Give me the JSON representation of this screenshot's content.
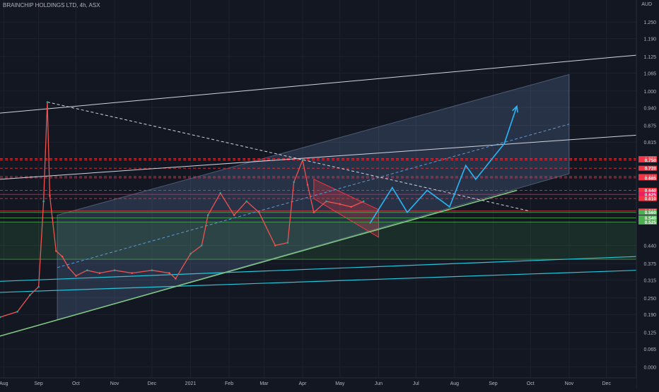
{
  "header": {
    "title": "BRAINCHIP HOLDINGS LTD, 4h, ASX",
    "currency": "AUD"
  },
  "chart_data": {
    "type": "line",
    "title": "BRAINCHIP HOLDINGS LTD, 4h, ASX",
    "xlabel": "",
    "ylabel": "AUD",
    "ylim": [
      -0.04,
      1.33
    ],
    "xlim": [
      "2020-08-01",
      "2021-12-25"
    ],
    "x_ticks": [
      {
        "date": "2020-08-04",
        "label": "Aug"
      },
      {
        "date": "2020-09-01",
        "label": "Sep"
      },
      {
        "date": "2020-10-01",
        "label": "Oct"
      },
      {
        "date": "2020-11-01",
        "label": "Nov"
      },
      {
        "date": "2020-12-01",
        "label": "Dec"
      },
      {
        "date": "2021-01-01",
        "label": "2021"
      },
      {
        "date": "2021-02-01",
        "label": "Feb"
      },
      {
        "date": "2021-03-01",
        "label": "Mar"
      },
      {
        "date": "2021-04-01",
        "label": "Apr"
      },
      {
        "date": "2021-05-01",
        "label": "May"
      },
      {
        "date": "2021-06-01",
        "label": "Jun"
      },
      {
        "date": "2021-07-01",
        "label": "Jul"
      },
      {
        "date": "2021-08-01",
        "label": "Aug"
      },
      {
        "date": "2021-09-01",
        "label": "Sep"
      },
      {
        "date": "2021-10-01",
        "label": "Oct"
      },
      {
        "date": "2021-11-01",
        "label": "Nov"
      },
      {
        "date": "2021-12-01",
        "label": "Dec"
      }
    ],
    "y_ticks": [
      "1.250",
      "1.190",
      "1.125",
      "1.065",
      "1.000",
      "0.940",
      "0.875",
      "0.815",
      "0.440",
      "0.375",
      "0.315",
      "0.250",
      "0.190",
      "0.125",
      "0.065",
      "0.000"
    ],
    "price_badges": [
      {
        "value": 0.755,
        "label": "0.755",
        "color": "#f23645"
      },
      {
        "value": 0.75,
        "label": "0.750",
        "color": "#f23645"
      },
      {
        "value": 0.72,
        "label": "0.720",
        "color": "#f23645"
      },
      {
        "value": 0.69,
        "label": "0.690",
        "color": "#f23645"
      },
      {
        "value": 0.685,
        "label": "0.685",
        "color": "#f23645"
      },
      {
        "value": 0.64,
        "label": "0.640",
        "color": "#f23645"
      },
      {
        "value": 0.625,
        "label": "0.625",
        "color": "#e91e63"
      },
      {
        "value": 0.61,
        "label": "0.610",
        "color": "#f23645"
      },
      {
        "value": 0.565,
        "label": "0.565",
        "color": "#f23645"
      },
      {
        "value": 0.56,
        "label": "0.560",
        "color": "#4caf50"
      },
      {
        "value": 0.54,
        "label": "0.540",
        "color": "#4caf50"
      },
      {
        "value": 0.525,
        "label": "0.525",
        "color": "#4caf50"
      }
    ],
    "price_series": {
      "name": "",
      "x": [
        "2020-08-01",
        "2020-08-15",
        "2020-08-25",
        "2020-09-01",
        "2020-09-05",
        "2020-09-08",
        "2020-09-10",
        "2020-09-12",
        "2020-09-15",
        "2020-09-20",
        "2020-09-25",
        "2020-10-01",
        "2020-10-10",
        "2020-10-20",
        "2020-11-01",
        "2020-11-15",
        "2020-12-01",
        "2020-12-15",
        "2020-12-20",
        "2021-01-01",
        "2021-01-10",
        "2021-01-15",
        "2021-01-25",
        "2021-02-05",
        "2021-02-15",
        "2021-02-25",
        "2021-03-10",
        "2021-03-20",
        "2021-03-25",
        "2021-04-01",
        "2021-04-05",
        "2021-04-10",
        "2021-04-20",
        "2021-05-01",
        "2021-05-10",
        "2021-05-20"
      ],
      "y": [
        0.18,
        0.2,
        0.26,
        0.29,
        0.6,
        0.96,
        0.62,
        0.54,
        0.42,
        0.4,
        0.36,
        0.33,
        0.35,
        0.34,
        0.35,
        0.34,
        0.35,
        0.34,
        0.32,
        0.41,
        0.44,
        0.55,
        0.63,
        0.55,
        0.6,
        0.56,
        0.44,
        0.45,
        0.67,
        0.75,
        0.66,
        0.56,
        0.6,
        0.59,
        0.58,
        0.6
      ]
    },
    "annotations": {
      "channel": {
        "lower": [
          [
            "2020-09-16",
            0.17
          ],
          [
            "2021-11-01",
            0.7
          ]
        ],
        "upper": [
          [
            "2020-09-16",
            0.55
          ],
          [
            "2021-11-01",
            1.06
          ]
        ]
      },
      "support_line": [
        [
          "2020-07-15",
          0.09
        ],
        [
          "2021-09-20",
          0.64
        ]
      ],
      "upper_white_1": [
        [
          "2020-08-01",
          0.92
        ],
        [
          "2021-12-25",
          1.13
        ]
      ],
      "upper_white_2": [
        [
          "2020-08-01",
          0.68
        ],
        [
          "2021-12-25",
          0.84
        ]
      ],
      "teal_line_1": [
        [
          "2020-08-01",
          0.31
        ],
        [
          "2021-12-25",
          0.4
        ]
      ],
      "teal_line_2": [
        [
          "2020-08-01",
          0.27
        ],
        [
          "2021-12-25",
          0.35
        ]
      ],
      "downtrend_dashed": [
        [
          "2020-09-08",
          0.96
        ],
        [
          "2021-09-30",
          0.565
        ]
      ],
      "midline_dashed": [
        [
          "2020-09-16",
          0.36
        ],
        [
          "2021-11-01",
          0.88
        ]
      ],
      "green_zone": [
        0.39,
        0.525
      ],
      "flag_channel": {
        "upper": [
          [
            "2021-04-10",
            0.68
          ],
          [
            "2021-06-01",
            0.57
          ]
        ],
        "lower": [
          [
            "2021-04-10",
            0.61
          ],
          [
            "2021-06-01",
            0.47
          ]
        ]
      },
      "projection_path": [
        [
          "2021-05-25",
          0.52
        ],
        [
          "2021-06-12",
          0.65
        ],
        [
          "2021-06-24",
          0.56
        ],
        [
          "2021-07-10",
          0.64
        ],
        [
          "2021-07-28",
          0.58
        ],
        [
          "2021-08-10",
          0.73
        ],
        [
          "2021-08-18",
          0.68
        ],
        [
          "2021-09-10",
          0.81
        ],
        [
          "2021-09-20",
          0.945
        ]
      ]
    }
  }
}
